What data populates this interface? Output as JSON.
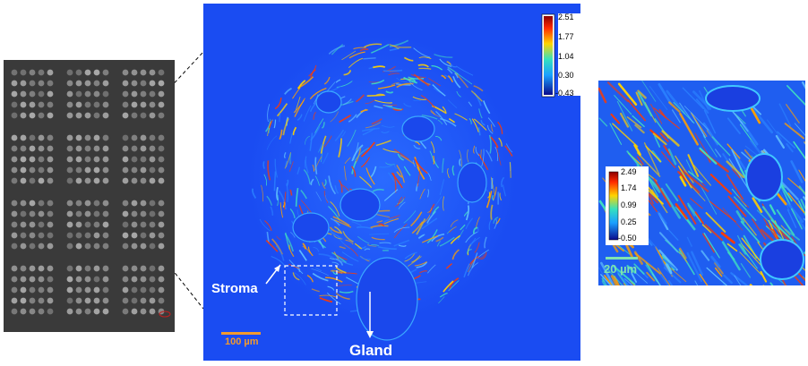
{
  "main": {
    "colorbar_ticks": [
      "2.51",
      "1.77",
      "1.04",
      "0.30",
      "-0.43"
    ],
    "scale_bar_label": "100 µm",
    "stroma_label": "Stroma",
    "gland_label": "Gland"
  },
  "zoom": {
    "colorbar_ticks": [
      "2.49",
      "1.74",
      "0.99",
      "0.25",
      "-0.50"
    ],
    "scale_bar_label": "20 µm"
  },
  "colors": {
    "background_blue": "#1a4cf2",
    "scale_bar_main": "#f29a2e",
    "scale_bar_zoom": "#7fe3b0",
    "overview_bg": "#3a3a3a"
  }
}
